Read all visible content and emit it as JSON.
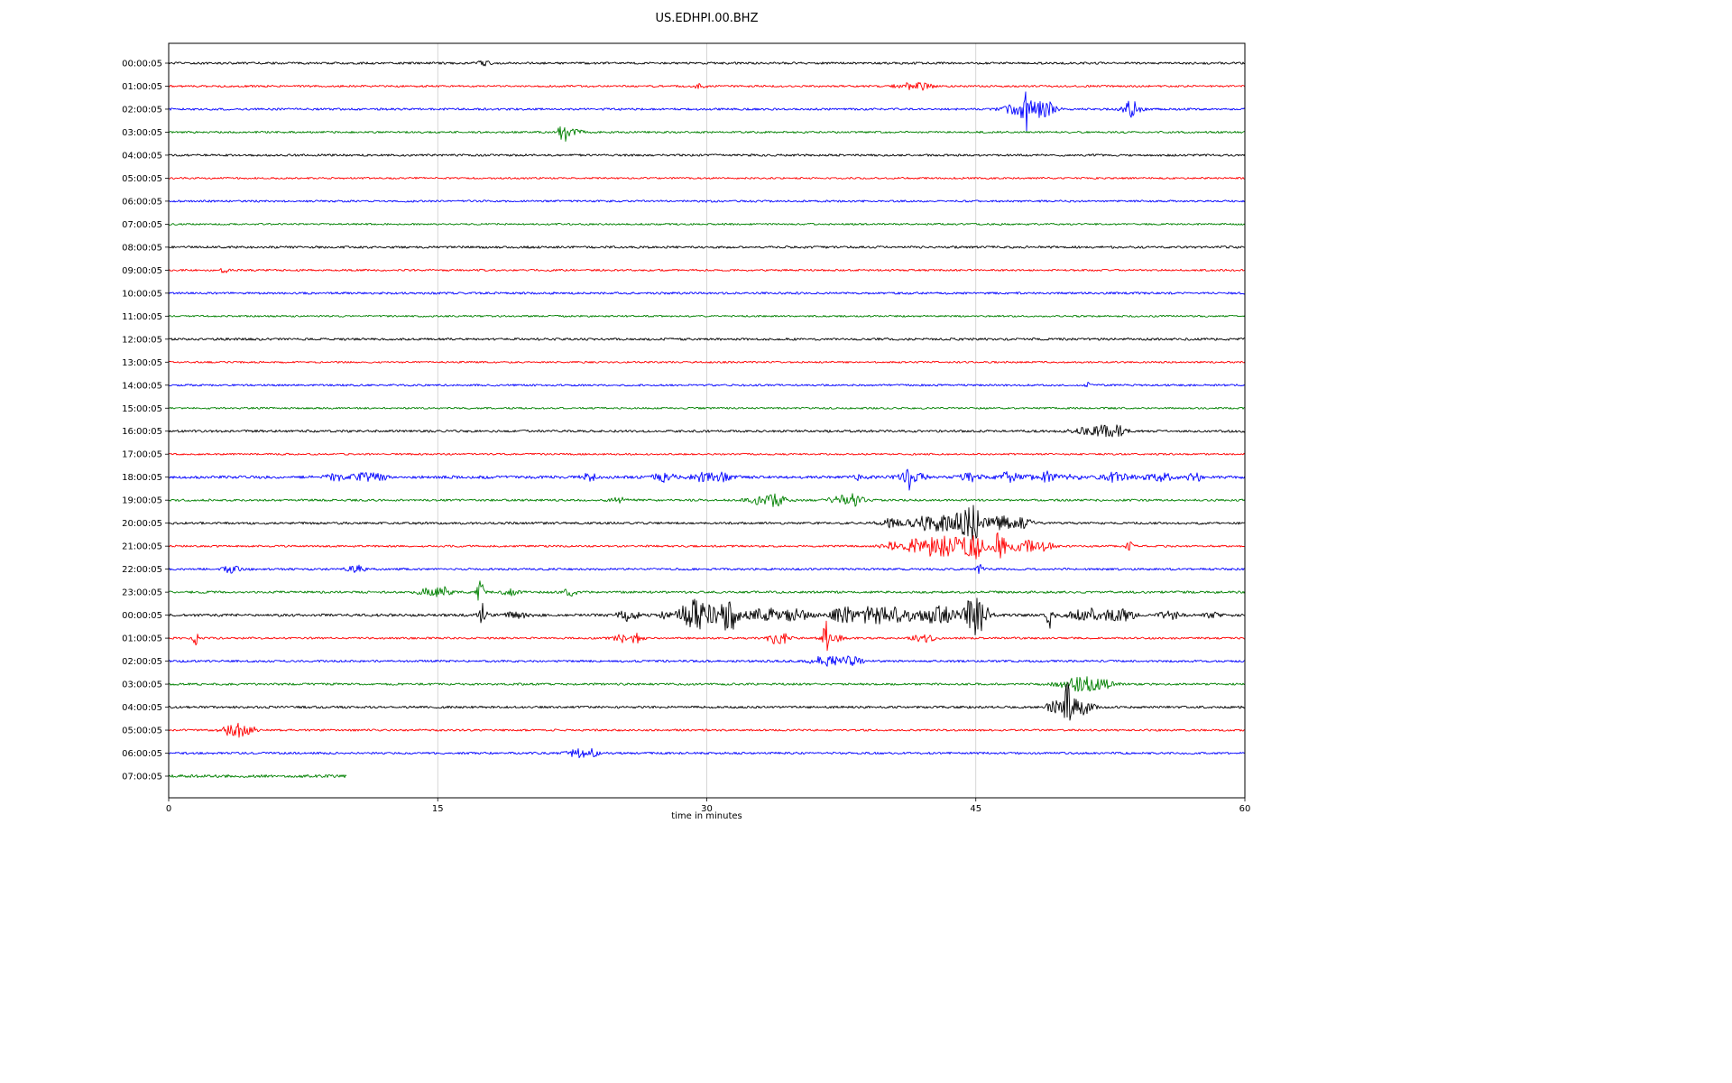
{
  "title": "US.EDHPI.00.BHZ",
  "xlabel": "time in minutes",
  "chart_data": {
    "type": "line",
    "subtype": "seismogram-dayplot",
    "title": "US.EDHPI.00.BHZ",
    "xlabel": "time in minutes",
    "xlim": [
      0,
      60
    ],
    "x_ticks": [
      0,
      15,
      30,
      45,
      60
    ],
    "grid": "vertical",
    "legend": "none",
    "palette": {
      "black": "#000000",
      "red": "#ff0000",
      "blue": "#0000ff",
      "green": "#008000"
    },
    "rows": [
      {
        "label": "00:00:05",
        "color": "black",
        "noise": 1.2,
        "events": [
          {
            "t": 17.6,
            "a": 2.5,
            "w": 0.3
          }
        ]
      },
      {
        "label": "01:00:05",
        "color": "red",
        "noise": 1.1,
        "events": [
          {
            "t": 29.6,
            "a": 2.0,
            "w": 0.25
          },
          {
            "t": 41.3,
            "a": 3.5,
            "w": 0.5
          },
          {
            "t": 42.2,
            "a": 3.0,
            "w": 0.3
          }
        ]
      },
      {
        "label": "02:00:05",
        "color": "blue",
        "noise": 1.2,
        "events": [
          {
            "t": 47.4,
            "a": 6,
            "w": 0.6
          },
          {
            "t": 47.75,
            "a": 26,
            "w": 0.1
          },
          {
            "t": 48.5,
            "a": 7,
            "w": 0.5
          },
          {
            "t": 49.2,
            "a": 4,
            "w": 0.3
          },
          {
            "t": 53.7,
            "a": 9,
            "w": 0.35
          }
        ]
      },
      {
        "label": "03:00:05",
        "color": "green",
        "noise": 1.1,
        "events": [
          {
            "t": 22.0,
            "a": 11,
            "w": 0.18
          },
          {
            "t": 22.5,
            "a": 3,
            "w": 0.4
          }
        ]
      },
      {
        "label": "04:00:05",
        "color": "black",
        "noise": 1.2,
        "events": []
      },
      {
        "label": "05:00:05",
        "color": "red",
        "noise": 1.0,
        "events": []
      },
      {
        "label": "06:00:05",
        "color": "blue",
        "noise": 1.1,
        "events": []
      },
      {
        "label": "07:00:05",
        "color": "green",
        "noise": 1.0,
        "events": []
      },
      {
        "label": "08:00:05",
        "color": "black",
        "noise": 1.3,
        "events": []
      },
      {
        "label": "09:00:05",
        "color": "red",
        "noise": 1.1,
        "events": [
          {
            "t": 3.1,
            "a": 3.5,
            "w": 0.12
          }
        ]
      },
      {
        "label": "10:00:05",
        "color": "blue",
        "noise": 1.2,
        "events": []
      },
      {
        "label": "11:00:05",
        "color": "green",
        "noise": 1.0,
        "events": []
      },
      {
        "label": "12:00:05",
        "color": "black",
        "noise": 1.3,
        "events": []
      },
      {
        "label": "13:00:05",
        "color": "red",
        "noise": 1.0,
        "events": []
      },
      {
        "label": "14:00:05",
        "color": "blue",
        "noise": 1.1,
        "events": [
          {
            "t": 51.2,
            "a": 4.5,
            "w": 0.1
          }
        ]
      },
      {
        "label": "15:00:05",
        "color": "green",
        "noise": 1.0,
        "events": []
      },
      {
        "label": "16:00:05",
        "color": "black",
        "noise": 1.3,
        "events": [
          {
            "t": 50.9,
            "a": 3,
            "w": 0.5
          },
          {
            "t": 52.3,
            "a": 7,
            "w": 0.5
          },
          {
            "t": 53.0,
            "a": 3,
            "w": 0.3
          }
        ]
      },
      {
        "label": "17:00:05",
        "color": "red",
        "noise": 1.0,
        "events": []
      },
      {
        "label": "18:00:05",
        "color": "blue",
        "noise": 1.6,
        "events": [
          {
            "t": 9.3,
            "a": 3,
            "w": 0.4
          },
          {
            "t": 10.9,
            "a": 4,
            "w": 0.5
          },
          {
            "t": 11.8,
            "a": 3,
            "w": 0.3
          },
          {
            "t": 23.5,
            "a": 4,
            "w": 0.3
          },
          {
            "t": 27.6,
            "a": 4.5,
            "w": 0.4
          },
          {
            "t": 29.6,
            "a": 4,
            "w": 0.5
          },
          {
            "t": 30.8,
            "a": 4,
            "w": 0.4
          },
          {
            "t": 38.6,
            "a": 3,
            "w": 0.3
          },
          {
            "t": 41.4,
            "a": 20,
            "w": 0.12
          },
          {
            "t": 41.4,
            "a": 5,
            "w": 0.5
          },
          {
            "t": 44.7,
            "a": 4,
            "w": 0.4
          },
          {
            "t": 46.9,
            "a": 6,
            "w": 0.4
          },
          {
            "t": 48.9,
            "a": 5.5,
            "w": 0.5
          },
          {
            "t": 50.5,
            "a": 3,
            "w": 0.3
          },
          {
            "t": 52.8,
            "a": 5,
            "w": 0.5
          },
          {
            "t": 55.2,
            "a": 4,
            "w": 0.6
          },
          {
            "t": 57.2,
            "a": 3.5,
            "w": 0.4
          }
        ]
      },
      {
        "label": "19:00:05",
        "color": "green",
        "noise": 1.2,
        "events": [
          {
            "t": 25.2,
            "a": 2.5,
            "w": 0.4
          },
          {
            "t": 33.2,
            "a": 5,
            "w": 0.6
          },
          {
            "t": 33.9,
            "a": 4,
            "w": 0.3
          },
          {
            "t": 37.6,
            "a": 5.5,
            "w": 0.5
          },
          {
            "t": 38.3,
            "a": 4,
            "w": 0.3
          }
        ]
      },
      {
        "label": "20:00:05",
        "color": "black",
        "noise": 1.3,
        "events": [
          {
            "t": 40.2,
            "a": 4,
            "w": 0.5
          },
          {
            "t": 42.7,
            "a": 9,
            "w": 0.9
          },
          {
            "t": 44.3,
            "a": 12,
            "w": 0.4
          },
          {
            "t": 44.9,
            "a": 14,
            "w": 0.25
          },
          {
            "t": 46.2,
            "a": 8,
            "w": 0.6
          },
          {
            "t": 47.6,
            "a": 5,
            "w": 0.4
          }
        ]
      },
      {
        "label": "21:00:05",
        "color": "red",
        "noise": 1.1,
        "events": [
          {
            "t": 40.3,
            "a": 4,
            "w": 0.4
          },
          {
            "t": 41.9,
            "a": 9,
            "w": 0.6
          },
          {
            "t": 43.4,
            "a": 11,
            "w": 0.7
          },
          {
            "t": 44.9,
            "a": 14,
            "w": 0.4
          },
          {
            "t": 46.3,
            "a": 17,
            "w": 0.25
          },
          {
            "t": 47.7,
            "a": 7,
            "w": 0.5
          },
          {
            "t": 48.8,
            "a": 4,
            "w": 0.4
          },
          {
            "t": 53.6,
            "a": 5,
            "w": 0.15
          }
        ]
      },
      {
        "label": "22:00:05",
        "color": "blue",
        "noise": 1.2,
        "events": [
          {
            "t": 3.5,
            "a": 3.5,
            "w": 0.4
          },
          {
            "t": 10.4,
            "a": 4.5,
            "w": 0.35
          },
          {
            "t": 45.2,
            "a": 7,
            "w": 0.12
          }
        ]
      },
      {
        "label": "23:00:05",
        "color": "green",
        "noise": 1.3,
        "events": [
          {
            "t": 14.7,
            "a": 4.5,
            "w": 0.5
          },
          {
            "t": 15.4,
            "a": 3.5,
            "w": 0.3
          },
          {
            "t": 17.4,
            "a": 18,
            "w": 0.12
          },
          {
            "t": 19.0,
            "a": 3,
            "w": 0.3
          },
          {
            "t": 22.4,
            "a": 5.5,
            "w": 0.2
          }
        ]
      },
      {
        "label": "00:00:05",
        "color": "black",
        "noise": 1.5,
        "events": [
          {
            "t": 17.5,
            "a": 12,
            "w": 0.15
          },
          {
            "t": 19.4,
            "a": 4,
            "w": 0.4
          },
          {
            "t": 25.6,
            "a": 6,
            "w": 0.4
          },
          {
            "t": 27.5,
            "a": 3,
            "w": 0.3
          },
          {
            "t": 29.2,
            "a": 16,
            "w": 0.5
          },
          {
            "t": 30.0,
            "a": 8,
            "w": 0.4
          },
          {
            "t": 31.2,
            "a": 18,
            "w": 0.4
          },
          {
            "t": 33.4,
            "a": 7,
            "w": 0.8
          },
          {
            "t": 35.1,
            "a": 5,
            "w": 0.5
          },
          {
            "t": 37.6,
            "a": 7,
            "w": 0.5
          },
          {
            "t": 39.3,
            "a": 9,
            "w": 0.8
          },
          {
            "t": 40.8,
            "a": 7,
            "w": 0.6
          },
          {
            "t": 43.0,
            "a": 9,
            "w": 0.8
          },
          {
            "t": 44.8,
            "a": 20,
            "w": 0.3
          },
          {
            "t": 45.4,
            "a": 12,
            "w": 0.3
          },
          {
            "t": 49.2,
            "a": 19,
            "w": 0.15
          },
          {
            "t": 51.4,
            "a": 7,
            "w": 0.8
          },
          {
            "t": 53.2,
            "a": 5,
            "w": 0.5
          },
          {
            "t": 55.8,
            "a": 4,
            "w": 0.4
          },
          {
            "t": 58.2,
            "a": 2.5,
            "w": 0.3
          }
        ]
      },
      {
        "label": "01:00:05",
        "color": "red",
        "noise": 1.1,
        "events": [
          {
            "t": 1.5,
            "a": 9,
            "w": 0.1
          },
          {
            "t": 25.4,
            "a": 5,
            "w": 0.4
          },
          {
            "t": 26.1,
            "a": 4,
            "w": 0.25
          },
          {
            "t": 34.0,
            "a": 7,
            "w": 0.4
          },
          {
            "t": 36.6,
            "a": 18,
            "w": 0.12
          },
          {
            "t": 37.0,
            "a": 4,
            "w": 0.4
          },
          {
            "t": 42.1,
            "a": 4.5,
            "w": 0.4
          }
        ]
      },
      {
        "label": "02:00:05",
        "color": "blue",
        "noise": 1.2,
        "events": [
          {
            "t": 36.5,
            "a": 5,
            "w": 0.5
          },
          {
            "t": 37.6,
            "a": 4.5,
            "w": 0.4
          },
          {
            "t": 38.3,
            "a": 3,
            "w": 0.3
          }
        ]
      },
      {
        "label": "03:00:05",
        "color": "green",
        "noise": 1.2,
        "events": [
          {
            "t": 50.3,
            "a": 5,
            "w": 0.6
          },
          {
            "t": 51.2,
            "a": 7,
            "w": 0.4
          },
          {
            "t": 52.2,
            "a": 4,
            "w": 0.4
          }
        ]
      },
      {
        "label": "04:00:05",
        "color": "black",
        "noise": 1.3,
        "events": [
          {
            "t": 49.5,
            "a": 6,
            "w": 0.4
          },
          {
            "t": 50.1,
            "a": 28,
            "w": 0.1
          },
          {
            "t": 50.6,
            "a": 10,
            "w": 0.3
          },
          {
            "t": 51.2,
            "a": 5,
            "w": 0.3
          }
        ]
      },
      {
        "label": "05:00:05",
        "color": "red",
        "noise": 1.1,
        "events": [
          {
            "t": 3.3,
            "a": 5,
            "w": 0.3
          },
          {
            "t": 4.0,
            "a": 7,
            "w": 0.25
          },
          {
            "t": 4.6,
            "a": 4,
            "w": 0.2
          }
        ]
      },
      {
        "label": "06:00:05",
        "color": "blue",
        "noise": 1.2,
        "events": [
          {
            "t": 22.8,
            "a": 4.5,
            "w": 0.4
          },
          {
            "t": 23.6,
            "a": 3.5,
            "w": 0.3
          }
        ]
      },
      {
        "label": "07:00:05",
        "color": "green",
        "noise": 1.6,
        "end": 9.9,
        "events": []
      }
    ]
  }
}
